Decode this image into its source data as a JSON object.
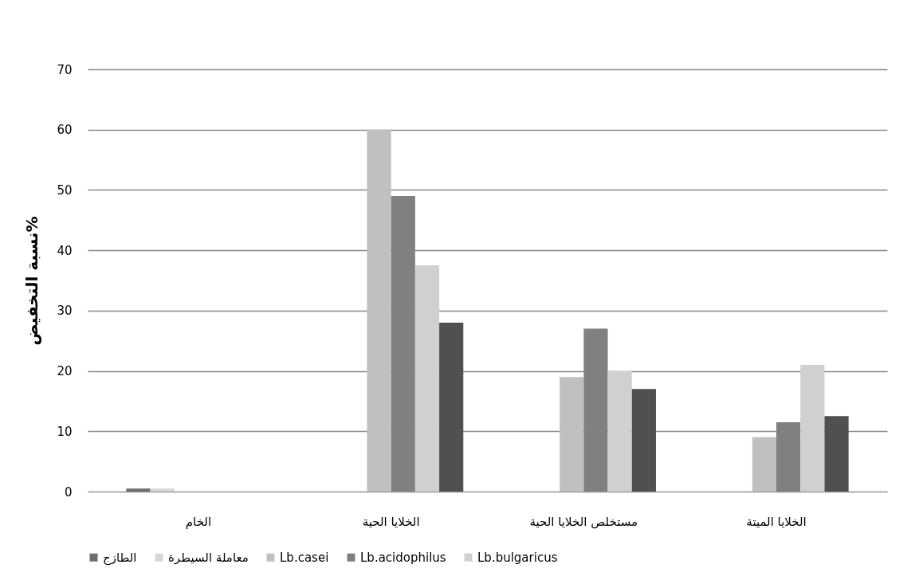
{
  "chart_data": {
    "type": "bar",
    "ylabel": "نسبة التخفيض%",
    "categories": [
      "الخام",
      "الخلايا الحية",
      "مستخلص الخلايا الحية",
      "الخلايا الميتة"
    ],
    "series": [
      {
        "name": "الطازج",
        "color": "#6e6e6e",
        "values": [
          0.5,
          null,
          null,
          null
        ]
      },
      {
        "name": "معاملة السيطرة",
        "color": "#d6d6d6",
        "values": [
          0.5,
          null,
          null,
          null
        ]
      },
      {
        "name": "Lb.casei",
        "color": "#c0c0c0",
        "values": [
          null,
          60,
          19,
          9
        ]
      },
      {
        "name": "Lb.acidophilus",
        "color": "#808080",
        "values": [
          null,
          49,
          27,
          11.5
        ]
      },
      {
        "name": "Lb.bulgaricus",
        "color": "#d0d0d0",
        "values": [
          null,
          37.5,
          20,
          21
        ]
      },
      {
        "color": "#505050",
        "values": [
          null,
          28,
          17,
          12.5
        ]
      }
    ],
    "ylim": [
      0,
      70
    ],
    "yticks": [
      0,
      10,
      20,
      30,
      40,
      50,
      60,
      70
    ],
    "grid": "y",
    "legend": "bottom"
  }
}
